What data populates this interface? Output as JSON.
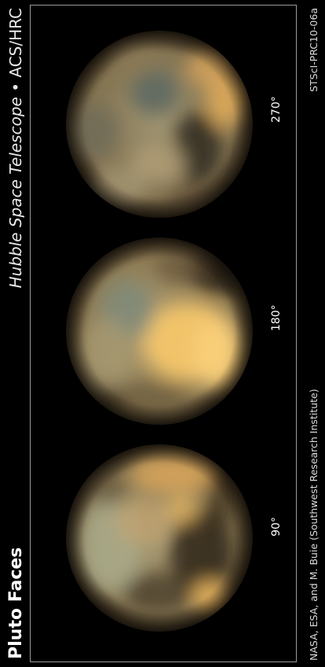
{
  "title": "Pluto Faces",
  "subtitle": {
    "telescope": "Hubble Space Telescope",
    "separator": "•",
    "instrument": "ACS/HRC"
  },
  "credits": {
    "left": "NASA, ESA, and M. Buie (Southwest Research Institute)",
    "right": "STScI-PRC10-06a"
  },
  "faces": [
    {
      "angle_label": "90°"
    },
    {
      "angle_label": "180°"
    },
    {
      "angle_label": "270°"
    }
  ],
  "colors": {
    "background": "#000000",
    "frame": "#9a9a9a",
    "planet_bright": "#f4c46a",
    "planet_mid": "#b89560",
    "planet_dark": "#3b3124",
    "planet_grey": "#8f9a8a"
  }
}
